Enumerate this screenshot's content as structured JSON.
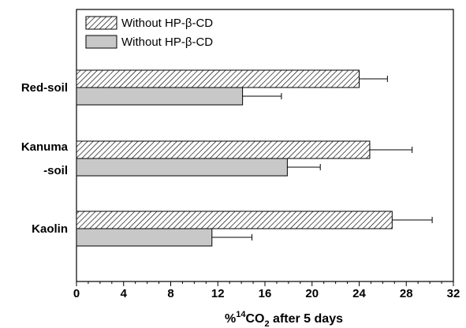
{
  "chart_data": {
    "type": "bar",
    "orientation": "horizontal",
    "categories": [
      "Red-soil",
      "Kanuma -soil",
      "Kaolin"
    ],
    "category_label_lines": [
      [
        "Red-soil"
      ],
      [
        "Kanuma",
        "-soil"
      ],
      [
        "Kaolin"
      ]
    ],
    "series": [
      {
        "name": "Without HP-β-CD",
        "pattern": "hatched",
        "color": "#ffffff",
        "values": [
          24.0,
          24.9,
          26.8
        ],
        "errors": [
          2.4,
          3.6,
          3.4
        ]
      },
      {
        "name": "Without HP-β-CD",
        "pattern": "solid",
        "color": "#c8c8c8",
        "values": [
          14.1,
          17.9,
          11.5
        ],
        "errors": [
          3.3,
          2.8,
          3.4
        ]
      }
    ],
    "xlim": [
      0,
      32
    ],
    "xticks": [
      0,
      4,
      8,
      12,
      16,
      20,
      24,
      28,
      32
    ],
    "xlabel": {
      "prefix": "%",
      "sup": "14",
      "main": "CO",
      "sub": "2",
      "suffix": " after 5 days"
    },
    "ylabel": "",
    "title": "",
    "legend_position": "top-left",
    "grid": false
  }
}
